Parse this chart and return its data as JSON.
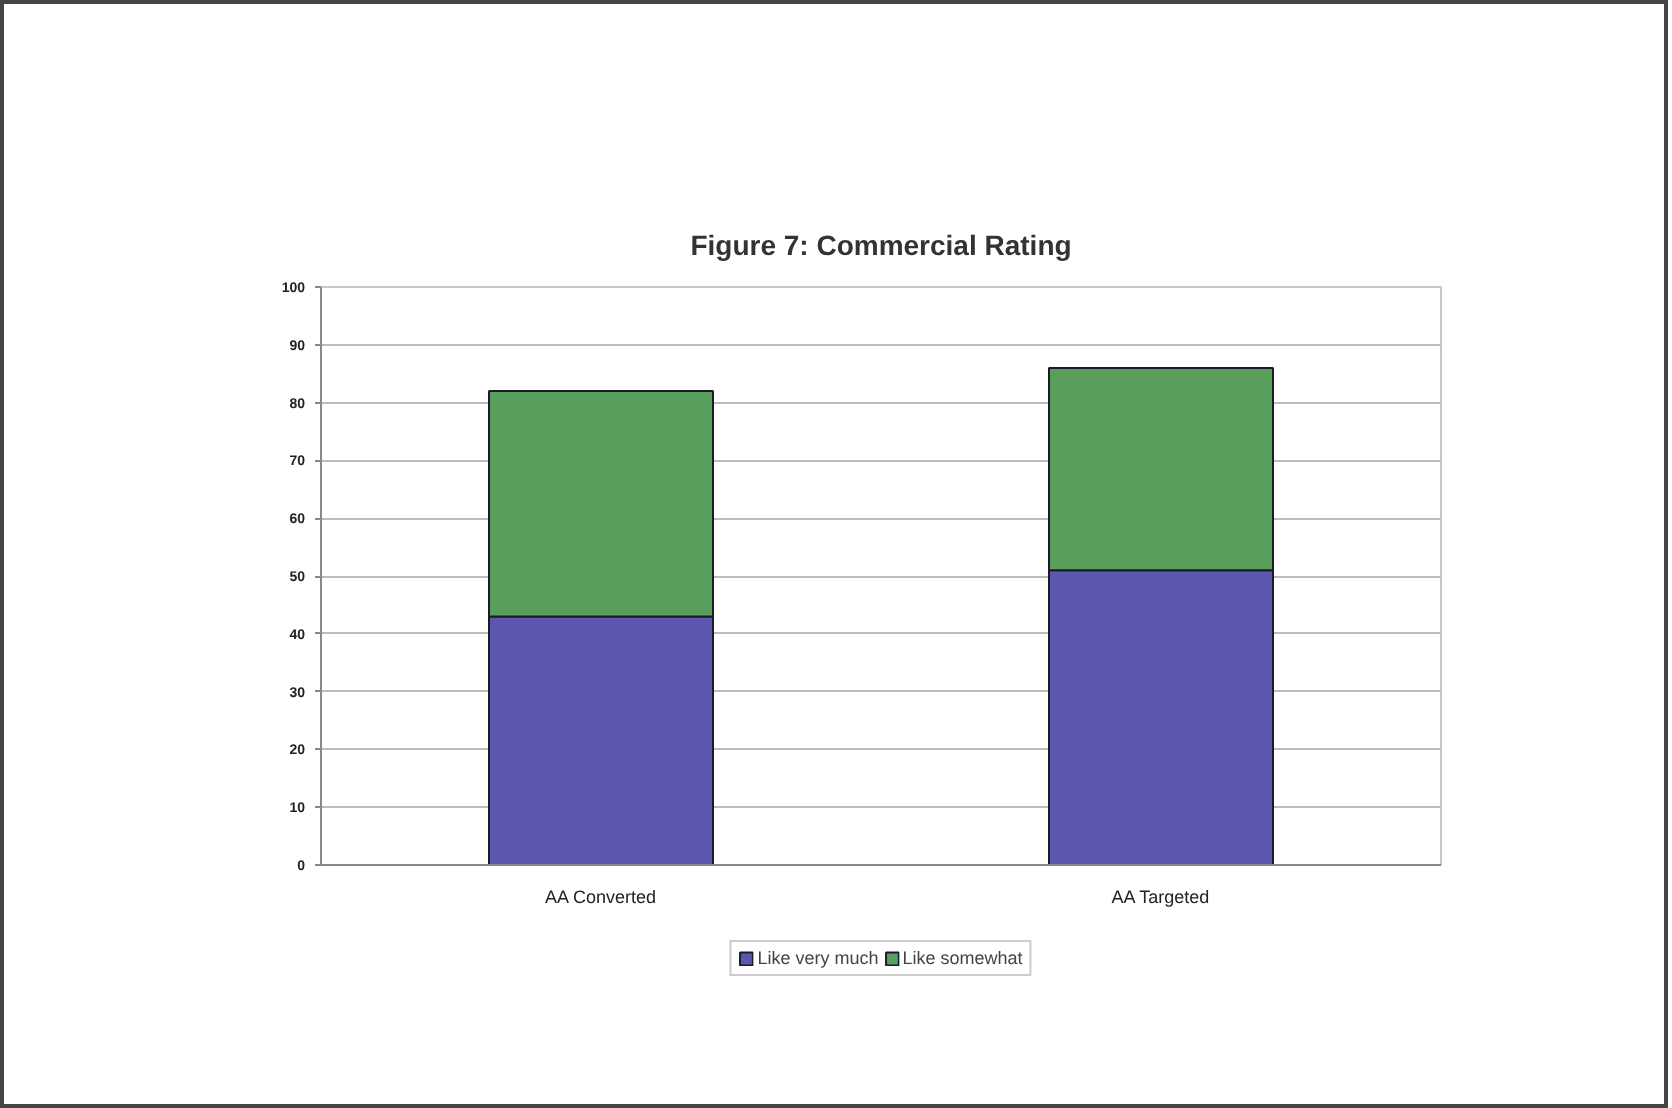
{
  "chart_data": {
    "type": "bar",
    "title": "Figure 7: Commercial Rating",
    "categories": [
      "AA Converted",
      "AA Targeted"
    ],
    "series": [
      {
        "name": "Like very much",
        "color": "#5b57ad",
        "values": [
          43,
          51
        ]
      },
      {
        "name": "Like somewhat",
        "color": "#5a9e5c",
        "values": [
          39,
          35
        ]
      }
    ],
    "stacked": true,
    "ylim": [
      0,
      100
    ],
    "yticks": [
      0,
      10,
      20,
      30,
      40,
      50,
      60,
      70,
      80,
      90,
      100
    ],
    "grid": "y",
    "legend": "bottom"
  }
}
